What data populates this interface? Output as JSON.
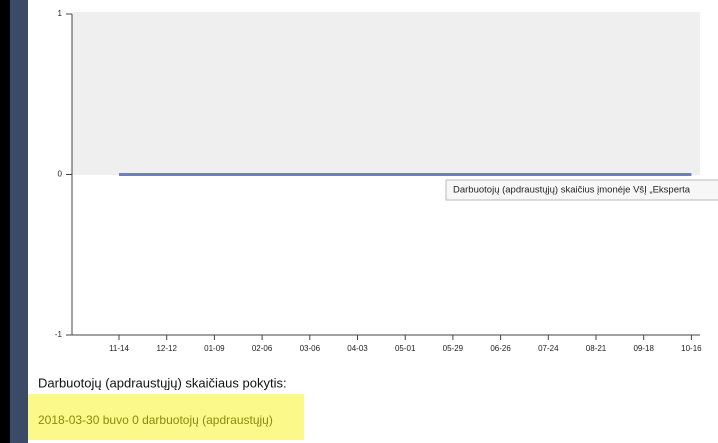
{
  "chart_data": {
    "type": "line",
    "categories": [
      "11-14",
      "12-12",
      "01-09",
      "02-06",
      "03-06",
      "04-03",
      "05-01",
      "05-29",
      "06-26",
      "07-24",
      "08-21",
      "09-18",
      "10-16"
    ],
    "series": [
      {
        "name": "Darbuotojų (apdraustųjų) skaičius įmonėje VšĮ „Eksperta",
        "color": "#6a7fc6",
        "values": [
          0,
          0,
          0,
          0,
          0,
          0,
          0,
          0,
          0,
          0,
          0,
          0,
          0
        ]
      }
    ],
    "ylim": [
      -1,
      1
    ],
    "yticks": [
      -1,
      0,
      1
    ]
  },
  "caption": "Darbuotojų (apdraustųjų) skaičiaus pokytis:",
  "highlight": "2018-03-30 buvo 0 darbuotojų (apdraustųjų)"
}
